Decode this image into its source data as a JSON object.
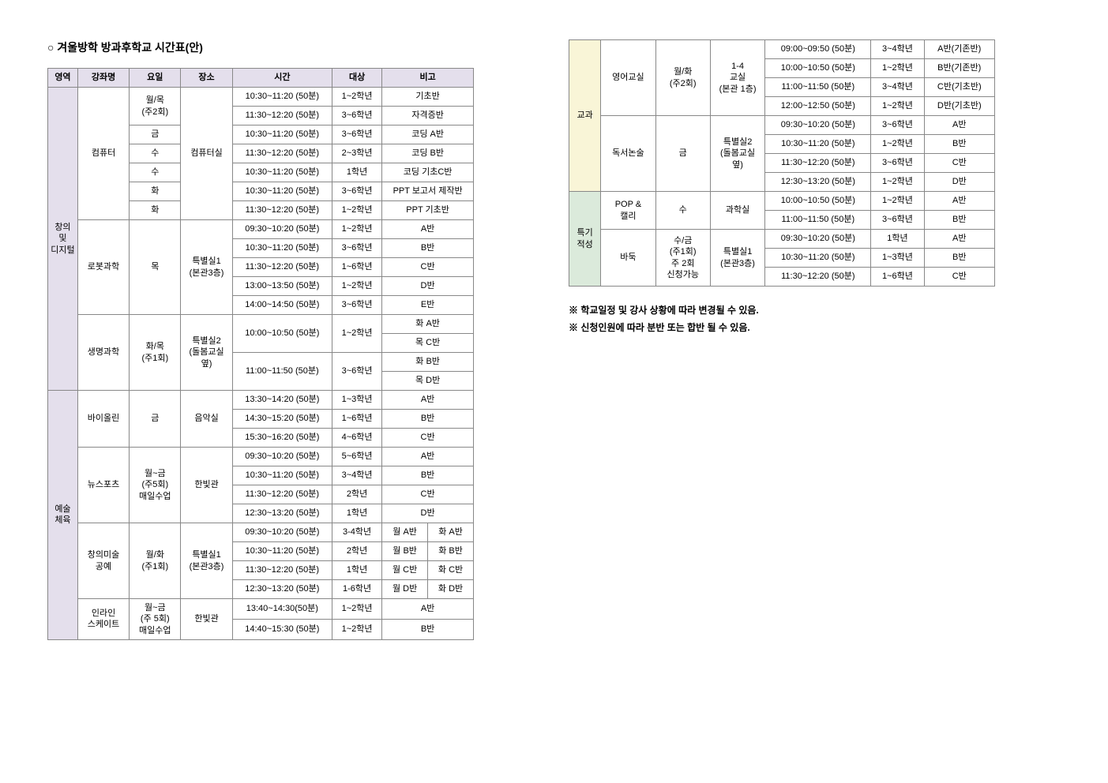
{
  "title": "○ 겨울방학 방과후학교 시간표(안)",
  "headers": {
    "area": "영역",
    "course": "강좌명",
    "day": "요일",
    "place": "장소",
    "time": "시간",
    "target": "대상",
    "note": "비고"
  },
  "colors": {
    "header_bg": "#e4dfec",
    "cat_purple": "#e4dfec",
    "cat_yellow": "#f9f5d7",
    "cat_green": "#dbeadb",
    "border": "#888888",
    "text": "#000000",
    "background": "#ffffff"
  },
  "left": {
    "groups": [
      {
        "area": "창의\n및\n디지털",
        "area_color": "purple",
        "courses": [
          {
            "name": "컴퓨터",
            "place": "컴퓨터실",
            "rows": [
              {
                "day": "월/목\n(주2회)",
                "day_span": 2,
                "time": "10:30~11:20 (50분)",
                "target": "1~2학년",
                "notes": [
                  "기초반"
                ]
              },
              {
                "time": "11:30~12:20 (50분)",
                "target": "3~6학년",
                "notes": [
                  "자격증반"
                ]
              },
              {
                "day": "금",
                "time": "10:30~11:20 (50분)",
                "target": "3~6학년",
                "notes": [
                  "코딩 A반"
                ]
              },
              {
                "day": "수",
                "time": "11:30~12:20 (50분)",
                "target": "2~3학년",
                "notes": [
                  "코딩 B반"
                ]
              },
              {
                "day": "수",
                "time": "10:30~11:20 (50분)",
                "target": "1학년",
                "notes": [
                  "코딩 기초C반"
                ]
              },
              {
                "day": "화",
                "time": "10:30~11:20 (50분)",
                "target": "3~6학년",
                "notes": [
                  "PPT 보고서 제작반"
                ]
              },
              {
                "day": "화",
                "time": "11:30~12:20 (50분)",
                "target": "1~2학년",
                "notes": [
                  "PPT 기초반"
                ]
              }
            ]
          },
          {
            "name": "로봇과학",
            "day": "목",
            "place": "특별실1\n(본관3층)",
            "rows": [
              {
                "time": "09:30~10:20 (50분)",
                "target": "1~2학년",
                "notes": [
                  "A반"
                ]
              },
              {
                "time": "10:30~11:20 (50분)",
                "target": "3~6학년",
                "notes": [
                  "B반"
                ]
              },
              {
                "time": "11:30~12:20 (50분)",
                "target": "1~6학년",
                "notes": [
                  "C반"
                ]
              },
              {
                "time": "13:00~13:50 (50분)",
                "target": "1~2학년",
                "notes": [
                  "D반"
                ]
              },
              {
                "time": "14:00~14:50 (50분)",
                "target": "3~6학년",
                "notes": [
                  "E반"
                ]
              }
            ]
          },
          {
            "name": "생명과학",
            "day": "화/목\n(주1회)",
            "place": "특별실2\n(돌봄교실\n옆)",
            "rows": [
              {
                "time": "10:00~10:50 (50분)",
                "time_span": 2,
                "target": "1~2학년",
                "target_span": 2,
                "notes": [
                  "화 A반"
                ]
              },
              {
                "notes": [
                  "목 C반"
                ]
              },
              {
                "time": "11:00~11:50 (50분)",
                "time_span": 2,
                "target": "3~6학년",
                "target_span": 2,
                "notes": [
                  "화 B반"
                ]
              },
              {
                "notes": [
                  "목 D반"
                ]
              }
            ]
          }
        ]
      },
      {
        "area": "예술\n체육",
        "area_color": "purple",
        "courses": [
          {
            "name": "바이올린",
            "day": "금",
            "place": "음악실",
            "rows": [
              {
                "time": "13:30~14:20 (50분)",
                "target": "1~3학년",
                "notes": [
                  "A반"
                ]
              },
              {
                "time": "14:30~15:20 (50분)",
                "target": "1~6학년",
                "notes": [
                  "B반"
                ]
              },
              {
                "time": "15:30~16:20 (50분)",
                "target": "4~6학년",
                "notes": [
                  "C반"
                ]
              }
            ]
          },
          {
            "name": "뉴스포츠",
            "day": "월~금\n(주5회)\n매일수업",
            "place": "한빛관",
            "rows": [
              {
                "time": "09:30~10:20 (50분)",
                "target": "5~6학년",
                "notes": [
                  "A반"
                ]
              },
              {
                "time": "10:30~11:20 (50분)",
                "target": "3~4학년",
                "notes": [
                  "B반"
                ]
              },
              {
                "time": "11:30~12:20 (50분)",
                "target": "2학년",
                "notes": [
                  "C반"
                ]
              },
              {
                "time": "12:30~13:20 (50분)",
                "target": "1학년",
                "notes": [
                  "D반"
                ]
              }
            ]
          },
          {
            "name": "창의미술\n공예",
            "day": "월/화\n(주1회)",
            "place": "특별실1\n(본관3층)",
            "rows": [
              {
                "time": "09:30~10:20 (50분)",
                "target": "3-4학년",
                "notes": [
                  "월 A반",
                  "화 A반"
                ]
              },
              {
                "time": "10:30~11:20 (50분)",
                "target": "2학년",
                "notes": [
                  "월 B반",
                  "화 B반"
                ]
              },
              {
                "time": "11:30~12:20 (50분)",
                "target": "1학년",
                "notes": [
                  "월 C반",
                  "화 C반"
                ]
              },
              {
                "time": "12:30~13:20 (50분)",
                "target": "1-6학년",
                "notes": [
                  "월 D반",
                  "화 D반"
                ]
              }
            ]
          },
          {
            "name": "인라인\n스케이트",
            "day": "월~금\n(주 5회)\n매일수업",
            "place": "한빛관",
            "rows": [
              {
                "time": "13:40~14:30(50분)",
                "target": "1~2학년",
                "notes": [
                  "A반"
                ]
              },
              {
                "time": "14:40~15:30 (50분)",
                "target": "1~2학년",
                "notes": [
                  "B반"
                ]
              }
            ]
          }
        ]
      }
    ]
  },
  "right": {
    "groups": [
      {
        "area": "교과",
        "area_color": "yellow",
        "courses": [
          {
            "name": "영어교실",
            "day": "월/화\n(주2회)",
            "place": "1-4\n교실\n(본관 1층)",
            "rows": [
              {
                "time": "09:00~09:50 (50분)",
                "target": "3~4학년",
                "notes": [
                  "A반(기존반)"
                ]
              },
              {
                "time": "10:00~10:50 (50분)",
                "target": "1~2학년",
                "notes": [
                  "B반(기존반)"
                ]
              },
              {
                "time": "11:00~11:50 (50분)",
                "target": "3~4학년",
                "notes": [
                  "C반(기초반)"
                ]
              },
              {
                "time": "12:00~12:50 (50분)",
                "target": "1~2학년",
                "notes": [
                  "D반(기초반)"
                ]
              }
            ]
          },
          {
            "name": "독서논술",
            "day": "금",
            "place": "특별실2\n(돌봄교실\n옆)",
            "rows": [
              {
                "time": "09:30~10:20 (50분)",
                "target": "3~6학년",
                "notes": [
                  "A반"
                ]
              },
              {
                "time": "10:30~11:20 (50분)",
                "target": "1~2학년",
                "notes": [
                  "B반"
                ]
              },
              {
                "time": "11:30~12:20 (50분)",
                "target": "3~6학년",
                "notes": [
                  "C반"
                ]
              },
              {
                "time": "12:30~13:20 (50분)",
                "target": "1~2학년",
                "notes": [
                  "D반"
                ]
              }
            ]
          }
        ]
      },
      {
        "area": "특기\n적성",
        "area_color": "green",
        "courses": [
          {
            "name": "POP &\n캘리",
            "day": "수",
            "place": "과학실",
            "rows": [
              {
                "time": "10:00~10:50 (50분)",
                "target": "1~2학년",
                "notes": [
                  "A반"
                ]
              },
              {
                "time": "11:00~11:50 (50분)",
                "target": "3~6학년",
                "notes": [
                  "B반"
                ]
              }
            ]
          },
          {
            "name": "바둑",
            "day": "수/금\n(주1회)\n주 2회\n신청가능",
            "place": "특별실1\n(본관3층)",
            "rows": [
              {
                "time": "09:30~10:20 (50분)",
                "target": "1학년",
                "notes": [
                  "A반"
                ]
              },
              {
                "time": "10:30~11:20 (50분)",
                "target": "1~3학년",
                "notes": [
                  "B반"
                ]
              },
              {
                "time": "11:30~12:20 (50분)",
                "target": "1~6학년",
                "notes": [
                  "C반"
                ]
              }
            ]
          }
        ]
      }
    ]
  },
  "notes": [
    "※ 학교일정 및 강사 상황에 따라 변경될 수 있음.",
    "※ 신청인원에 따라 분반 또는 합반 될 수 있음."
  ]
}
